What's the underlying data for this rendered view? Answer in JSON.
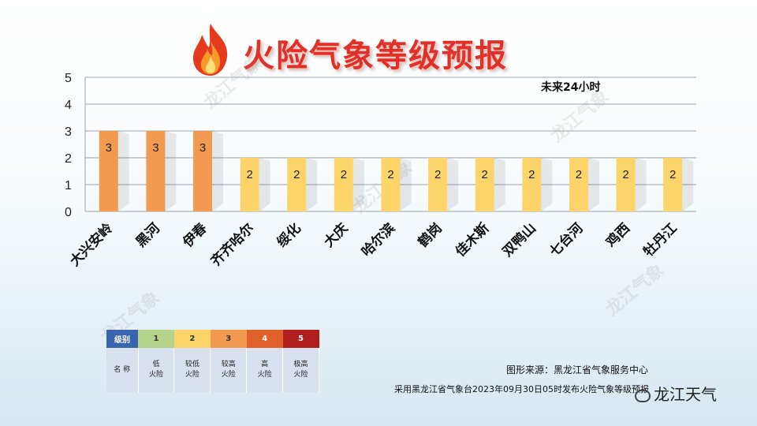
{
  "header": {
    "title": "火险气象等级预报",
    "subtitle": "未来24小时"
  },
  "chart_data": {
    "type": "bar",
    "categories": [
      "大兴安岭",
      "黑河",
      "伊春",
      "齐齐哈尔",
      "绥化",
      "大庆",
      "哈尔滨",
      "鹤岗",
      "佳木斯",
      "双鸭山",
      "七台河",
      "鸡西",
      "牡丹江"
    ],
    "values": [
      3,
      3,
      3,
      2,
      2,
      2,
      2,
      2,
      2,
      2,
      2,
      2,
      2
    ],
    "ylim": [
      0,
      5
    ],
    "yticks": [
      "0",
      "1",
      "2",
      "3",
      "4",
      "5"
    ],
    "grid": true,
    "level_colors": {
      "2": "#fcd46a",
      "3": "#f29a4f"
    }
  },
  "legend": {
    "header_label": "级别",
    "name_label": "名 称",
    "levels": [
      {
        "num": "1",
        "name1": "低",
        "name2": "火险",
        "color": "#b6d38c"
      },
      {
        "num": "2",
        "name1": "较低",
        "name2": "火险",
        "color": "#fcd46a"
      },
      {
        "num": "3",
        "name1": "较高",
        "name2": "火险",
        "color": "#f29a4f"
      },
      {
        "num": "4",
        "name1": "高",
        "name2": "火险",
        "color": "#e0612a"
      },
      {
        "num": "5",
        "name1": "极高",
        "name2": "火险",
        "color": "#b01e1e"
      }
    ]
  },
  "footer": {
    "source": "图形来源：黑龙江省气象服务中心",
    "note": "采用黑龙江省气象台2023年09月30日05时发布火险气象等级预报",
    "brand": "龙江天气"
  },
  "watermark": "龙江气象"
}
